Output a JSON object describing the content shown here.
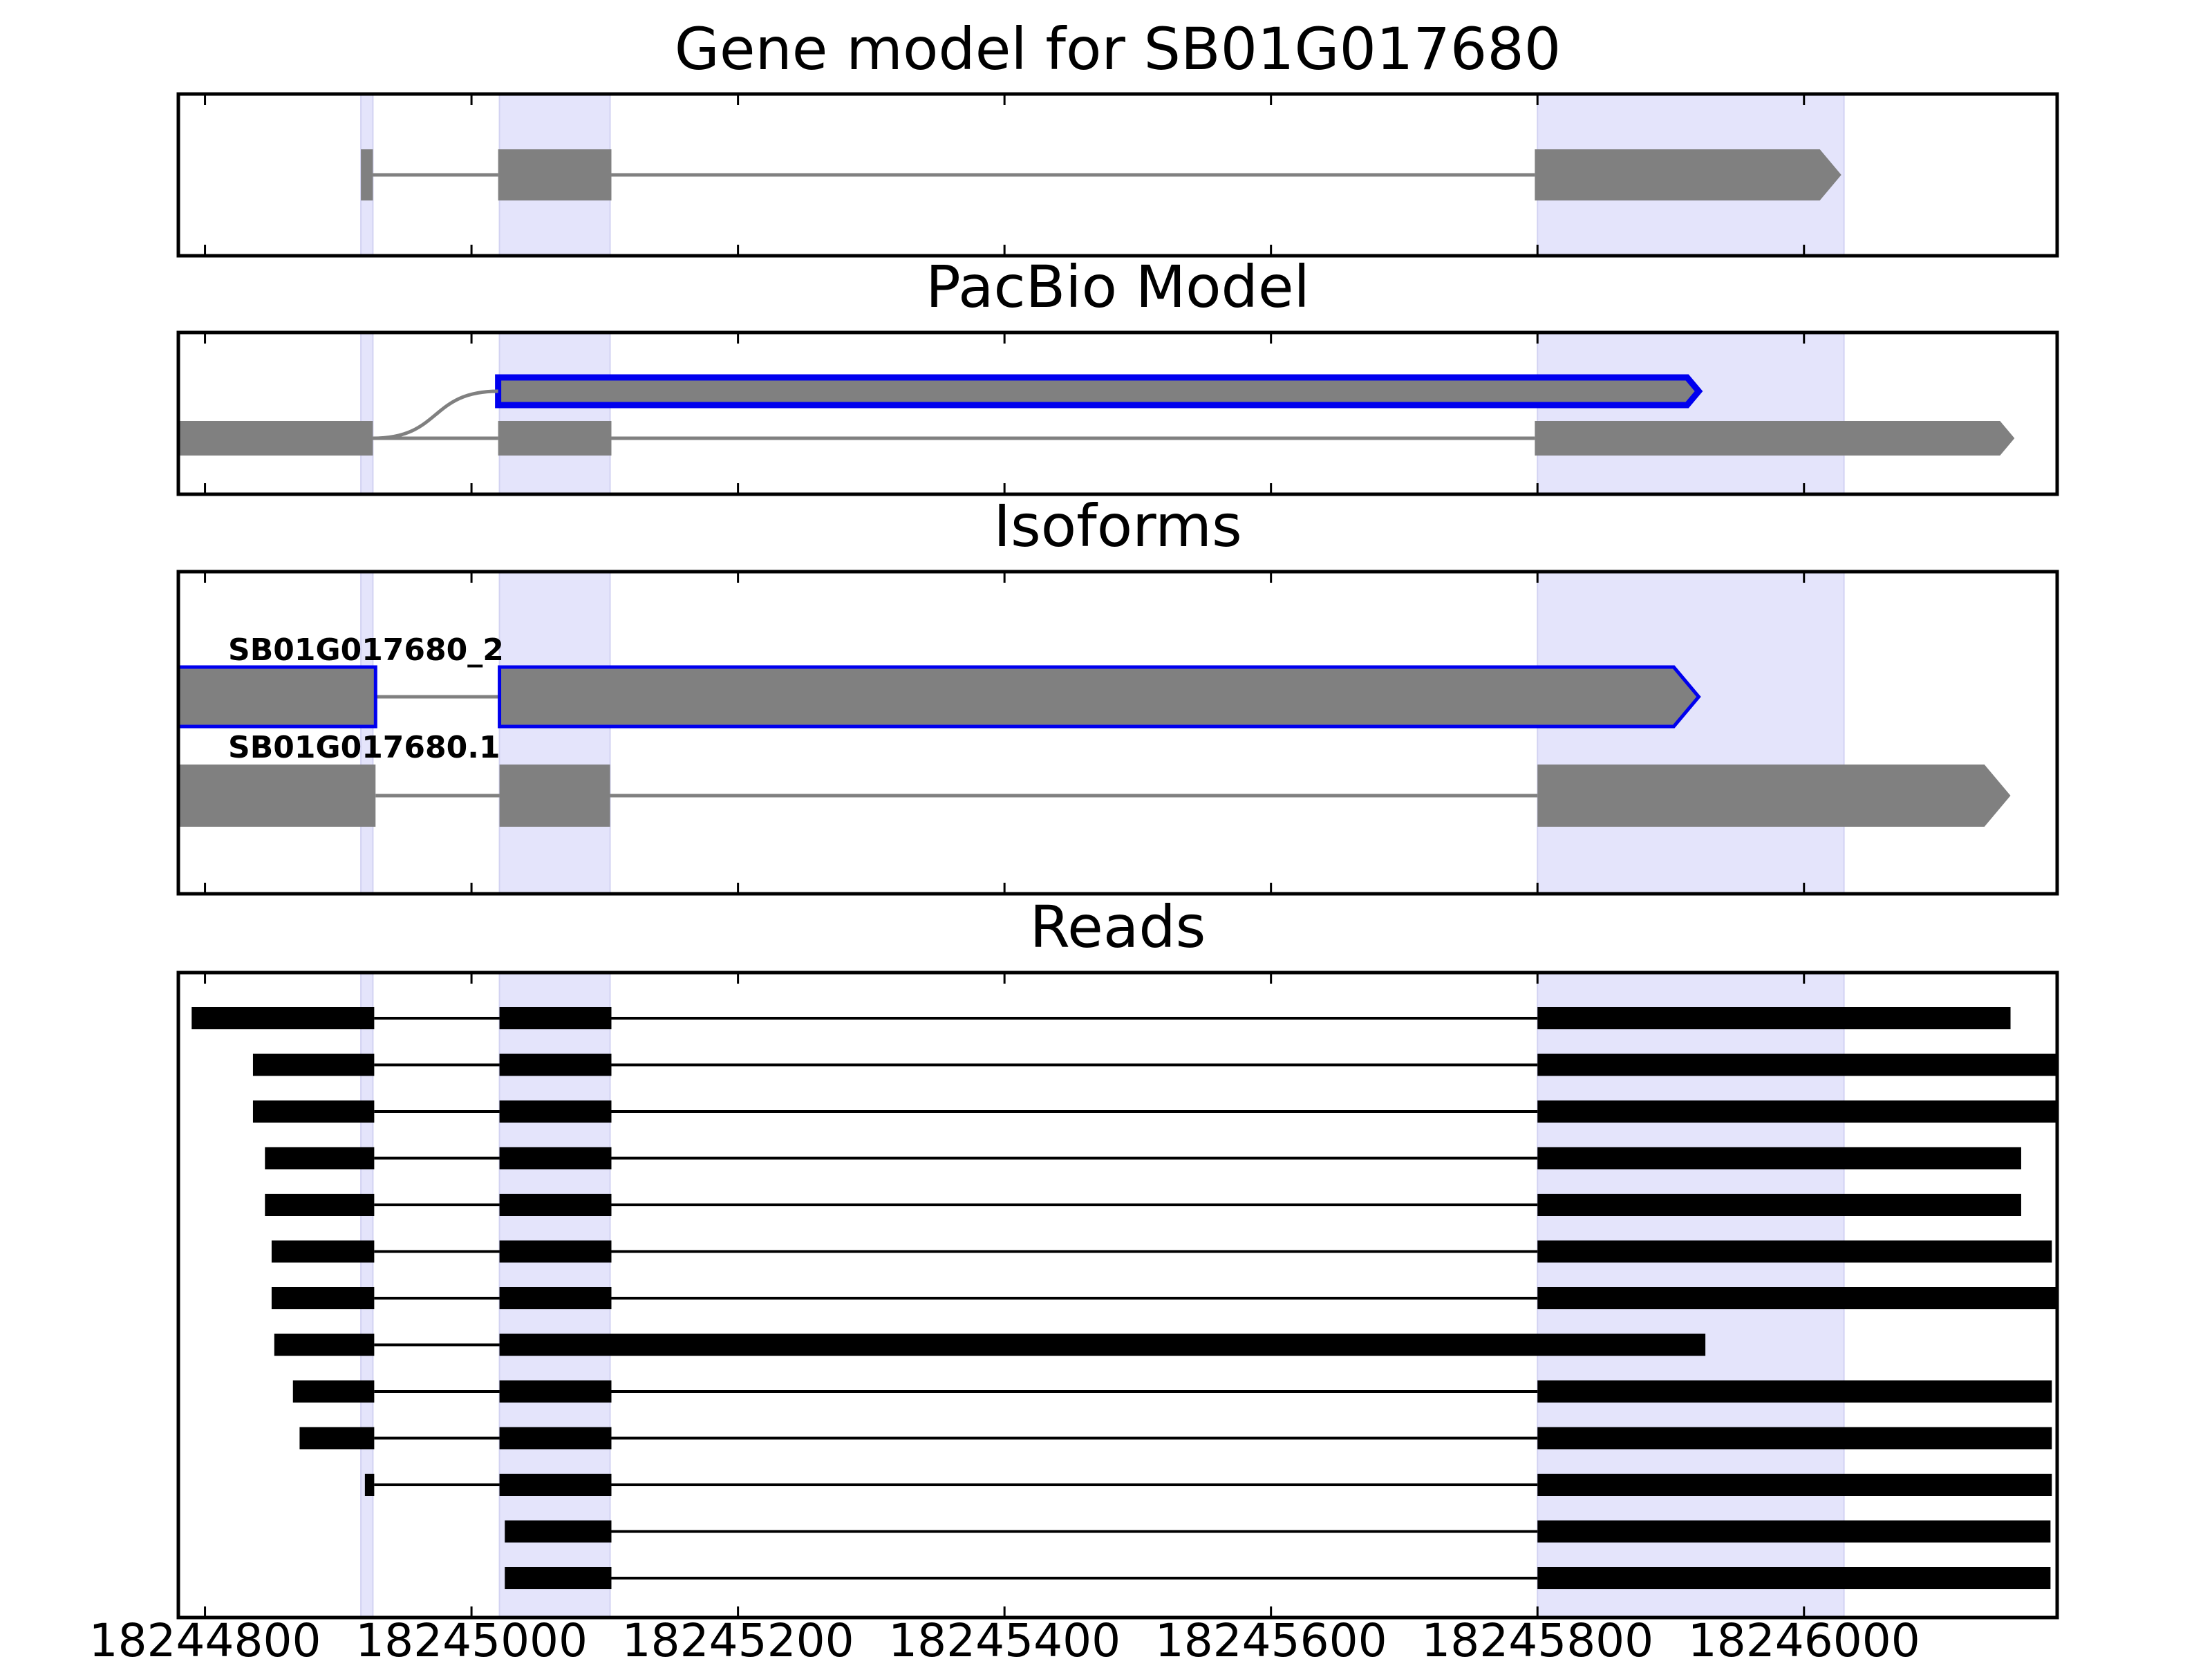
{
  "chart_data": {
    "type": "gene-structure",
    "xlim": [
      18244780,
      18246190
    ],
    "x_ticks": [
      18244800,
      18245000,
      18245200,
      18245400,
      18245600,
      18245800,
      18246000
    ],
    "colors": {
      "exon": "#808080",
      "highlight_outline": "#0000ee",
      "shaded_region": "#e4e4fb",
      "read": "#000000",
      "intron": "#808080"
    },
    "shaded_regions": [
      [
        18244917,
        18244926
      ],
      [
        18245021,
        18245104
      ],
      [
        18245800,
        18246030
      ]
    ],
    "panels": [
      {
        "title": "Gene model for SB01G017680",
        "models": [
          {
            "strand": "+",
            "exons": [
              [
                18244917,
                18244926
              ],
              [
                18245020,
                18245105
              ],
              [
                18245798,
                18246028
              ]
            ]
          }
        ]
      },
      {
        "title": "PacBio Model",
        "models": [
          {
            "strand": "+",
            "highlight": true,
            "row": "upper",
            "exons": [
              [
                18245020,
                18245921
              ]
            ]
          },
          {
            "strand": "+",
            "exons": [
              [
                18244777,
                18244926
              ],
              [
                18245020,
                18245105
              ],
              [
                18245798,
                18246158
              ]
            ]
          }
        ],
        "connector": [
          18244926,
          18245020
        ]
      },
      {
        "title": "Isoforms",
        "models": [
          {
            "label": "SB01G017680_2",
            "strand": "+",
            "highlight": true,
            "exons": [
              [
                18244777,
                18244928
              ],
              [
                18245021,
                18245921
              ]
            ]
          },
          {
            "label": "SB01G017680.1",
            "strand": "+",
            "exons": [
              [
                18244777,
                18244928
              ],
              [
                18245021,
                18245104
              ],
              [
                18245800,
                18246155
              ]
            ]
          }
        ]
      },
      {
        "title": "Reads",
        "reads": [
          [
            [
              18244790,
              18244927
            ],
            [
              18245021,
              18245105
            ],
            [
              18245800,
              18246155
            ]
          ],
          [
            [
              18244836,
              18244927
            ],
            [
              18245021,
              18245105
            ],
            [
              18245800,
              18246190
            ]
          ],
          [
            [
              18244836,
              18244927
            ],
            [
              18245021,
              18245105
            ],
            [
              18245800,
              18246190
            ]
          ],
          [
            [
              18244845,
              18244927
            ],
            [
              18245021,
              18245105
            ],
            [
              18245800,
              18246163
            ]
          ],
          [
            [
              18244845,
              18244927
            ],
            [
              18245021,
              18245105
            ],
            [
              18245800,
              18246163
            ]
          ],
          [
            [
              18244850,
              18244927
            ],
            [
              18245021,
              18245105
            ],
            [
              18245800,
              18246186
            ]
          ],
          [
            [
              18244850,
              18244927
            ],
            [
              18245021,
              18245105
            ],
            [
              18245800,
              18246190
            ]
          ],
          [
            [
              18244852,
              18244927
            ],
            [
              18245021,
              18245926
            ]
          ],
          [
            [
              18244866,
              18244927
            ],
            [
              18245021,
              18245105
            ],
            [
              18245800,
              18246186
            ]
          ],
          [
            [
              18244871,
              18244927
            ],
            [
              18245021,
              18245105
            ],
            [
              18245800,
              18246186
            ]
          ],
          [
            [
              18244920,
              18244927
            ],
            [
              18245021,
              18245105
            ],
            [
              18245800,
              18246186
            ]
          ],
          [
            [
              18245025,
              18245105
            ],
            [
              18245800,
              18246185
            ]
          ],
          [
            [
              18245025,
              18245105
            ],
            [
              18245800,
              18246185
            ]
          ]
        ]
      }
    ]
  }
}
